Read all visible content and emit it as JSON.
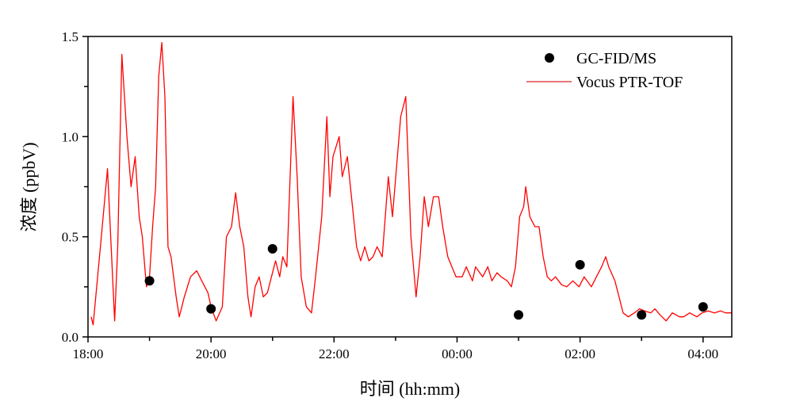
{
  "chart_data": {
    "type": "line+scatter",
    "xlabel": "时间 (hh:mm)",
    "ylabel": "浓度 (ppbV)",
    "xlim": [
      "18:00",
      "04:28"
    ],
    "ylim": [
      0,
      1.5
    ],
    "xticks": [
      "18:00",
      "20:00",
      "22:00",
      "00:00",
      "02:00",
      "04:00"
    ],
    "xminor_ticks": [
      "19:00",
      "21:00",
      "23:00",
      "01:00",
      "03:00"
    ],
    "yticks": [
      "0.0",
      "0.5",
      "1.0",
      "1.5"
    ],
    "yminor_ticks": [
      0.25,
      0.75,
      1.25
    ],
    "grid": false,
    "legend_placement": "top-right",
    "series": [
      {
        "name": "GC-FID/MS",
        "kind": "scatter",
        "color": "#000000",
        "x": [
          "19:00",
          "20:00",
          "21:00",
          "01:00",
          "02:00",
          "03:00",
          "04:00"
        ],
        "y": [
          0.28,
          0.14,
          0.44,
          0.11,
          0.36,
          0.11,
          0.15
        ]
      },
      {
        "name": "Vocus PTR-TOF",
        "kind": "line",
        "color": "#ff0000",
        "x": [
          "18:03",
          "18:05",
          "18:13",
          "18:19",
          "18:26",
          "18:29",
          "18:33",
          "18:38",
          "18:42",
          "18:46",
          "18:50",
          "18:53",
          "18:57",
          "19:00",
          "19:03",
          "19:06",
          "19:09",
          "19:12",
          "19:15",
          "19:18",
          "19:21",
          "19:26",
          "19:29",
          "19:34",
          "19:40",
          "19:46",
          "19:51",
          "19:57",
          "20:00",
          "20:05",
          "20:11",
          "20:15",
          "20:20",
          "20:24",
          "20:28",
          "20:32",
          "20:36",
          "20:39",
          "20:43",
          "20:47",
          "20:51",
          "20:55",
          "20:59",
          "21:03",
          "21:07",
          "21:10",
          "21:14",
          "21:20",
          "21:24",
          "21:28",
          "21:33",
          "21:38",
          "21:42",
          "21:48",
          "21:53",
          "21:56",
          "21:59",
          "22:05",
          "22:08",
          "22:13",
          "22:18",
          "22:22",
          "22:26",
          "22:30",
          "22:34",
          "22:38",
          "22:42",
          "22:47",
          "22:53",
          "22:57",
          "23:01",
          "23:05",
          "23:10",
          "23:15",
          "23:20",
          "23:24",
          "23:28",
          "23:32",
          "23:37",
          "23:42",
          "23:46",
          "23:51",
          "23:55",
          "23:59",
          "00:05",
          "00:09",
          "00:15",
          "00:18",
          "00:25",
          "00:30",
          "00:34",
          "00:39",
          "00:43",
          "00:49",
          "00:53",
          "00:57",
          "01:01",
          "01:05",
          "01:07",
          "01:11",
          "01:16",
          "01:20",
          "01:24",
          "01:28",
          "01:32",
          "01:36",
          "01:42",
          "01:47",
          "01:53",
          "01:59",
          "02:04",
          "02:11",
          "02:16",
          "02:21",
          "02:25",
          "02:28",
          "02:34",
          "02:38",
          "02:42",
          "02:47",
          "02:53",
          "02:58",
          "03:03",
          "03:09",
          "03:13",
          "03:18",
          "03:24",
          "03:30",
          "03:37",
          "03:41",
          "03:47",
          "03:54",
          "03:59",
          "04:05",
          "04:11",
          "04:17",
          "04:22",
          "04:28"
        ],
        "y": [
          0.1,
          0.06,
          0.5,
          0.84,
          0.08,
          0.45,
          1.41,
          1.0,
          0.75,
          0.9,
          0.6,
          0.5,
          0.25,
          0.3,
          0.55,
          0.75,
          1.3,
          1.47,
          1.2,
          0.45,
          0.4,
          0.2,
          0.1,
          0.2,
          0.3,
          0.33,
          0.28,
          0.22,
          0.15,
          0.08,
          0.15,
          0.5,
          0.55,
          0.72,
          0.55,
          0.45,
          0.2,
          0.1,
          0.25,
          0.3,
          0.2,
          0.22,
          0.3,
          0.38,
          0.3,
          0.4,
          0.35,
          1.2,
          0.8,
          0.3,
          0.15,
          0.12,
          0.3,
          0.6,
          1.1,
          0.7,
          0.9,
          1.0,
          0.8,
          0.9,
          0.65,
          0.45,
          0.38,
          0.45,
          0.38,
          0.4,
          0.45,
          0.4,
          0.8,
          0.6,
          0.85,
          1.1,
          1.2,
          0.5,
          0.2,
          0.4,
          0.7,
          0.55,
          0.7,
          0.7,
          0.55,
          0.4,
          0.35,
          0.3,
          0.3,
          0.35,
          0.28,
          0.35,
          0.3,
          0.35,
          0.28,
          0.32,
          0.3,
          0.28,
          0.25,
          0.35,
          0.6,
          0.65,
          0.75,
          0.6,
          0.55,
          0.55,
          0.4,
          0.3,
          0.28,
          0.3,
          0.26,
          0.25,
          0.28,
          0.25,
          0.3,
          0.25,
          0.3,
          0.35,
          0.4,
          0.35,
          0.28,
          0.2,
          0.12,
          0.1,
          0.12,
          0.14,
          0.13,
          0.12,
          0.14,
          0.11,
          0.08,
          0.12,
          0.1,
          0.1,
          0.12,
          0.1,
          0.12,
          0.13,
          0.12,
          0.13,
          0.12,
          0.12
        ]
      }
    ]
  }
}
